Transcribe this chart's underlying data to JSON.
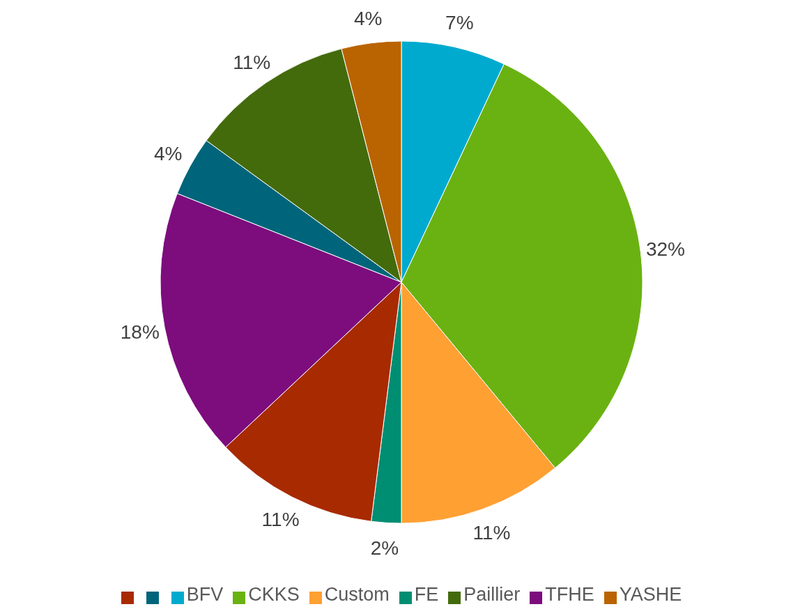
{
  "chart_data": {
    "type": "pie",
    "categories": [
      "BFV",
      "CKKS",
      "Custom",
      "FE",
      null,
      "TFHE",
      null,
      "Paillier",
      "YASHE"
    ],
    "values": [
      7,
      32,
      11,
      2,
      11,
      18,
      4,
      11,
      4
    ],
    "value_labels": [
      "7%",
      "32%",
      "11%",
      "2%",
      "11%",
      "18%",
      "4%",
      "11%",
      "4%"
    ],
    "colors": [
      "#00aacf",
      "#6ab212",
      "#ffa033",
      "#008e73",
      "#a82a00",
      "#7d0c7d",
      "#00657a",
      "#436b0c",
      "#b96400"
    ],
    "legend": "bottom"
  }
}
